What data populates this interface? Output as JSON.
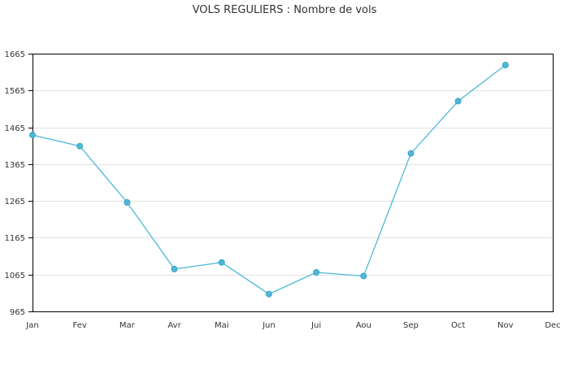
{
  "chart_data": {
    "type": "line",
    "title": "VOLS REGULIERS : Nombre de vols",
    "xlabel": "",
    "ylabel": "",
    "categories": [
      "Jan",
      "Fev",
      "Mar",
      "Avr",
      "Mai",
      "Jun",
      "Jui",
      "Aou",
      "Sep",
      "Oct",
      "Nov",
      "Dec"
    ],
    "y_ticks": [
      "965",
      "1065",
      "1165",
      "1265",
      "1365",
      "1465",
      "1565",
      "1665"
    ],
    "ylim": [
      965,
      1665
    ],
    "grid": true,
    "series": [
      {
        "values": [
          1444,
          1414,
          1261,
          1080,
          1098,
          1012,
          1071,
          1061,
          1394,
          1536,
          1634,
          null
        ],
        "color": "#4db8d8"
      }
    ]
  }
}
